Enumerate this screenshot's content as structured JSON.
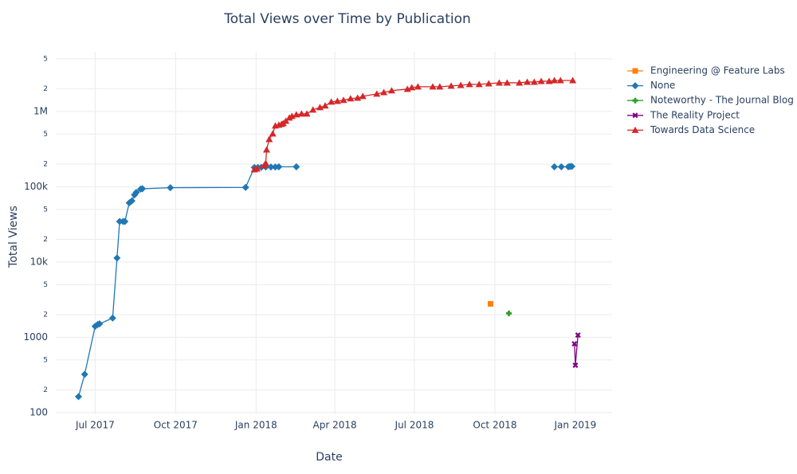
{
  "chart_data": {
    "type": "line",
    "title": "Total Views over Time by Publication",
    "x_label": "Date",
    "y_label": "Total Views",
    "y_scale": "log",
    "grid": true,
    "legend_position": "right",
    "xlim": [
      "2017-05-17",
      "2019-02-12"
    ],
    "ylim": [
      95,
      6200000
    ],
    "xticks": [
      {
        "value": "2017-07-01",
        "label": "Jul 2017"
      },
      {
        "value": "2017-10-01",
        "label": "Oct 2017"
      },
      {
        "value": "2018-01-01",
        "label": "Jan 2018"
      },
      {
        "value": "2018-04-01",
        "label": "Apr 2018"
      },
      {
        "value": "2018-07-01",
        "label": "Jul 2018"
      },
      {
        "value": "2018-10-01",
        "label": "Oct 2018"
      },
      {
        "value": "2019-01-01",
        "label": "Jan 2019"
      }
    ],
    "yticks": [
      100,
      {
        "value": 200,
        "label": "2"
      },
      {
        "value": 500,
        "label": "5"
      },
      1000,
      {
        "value": 2000,
        "label": "2"
      },
      {
        "value": 5000,
        "label": "5"
      },
      {
        "value": 10000,
        "label": "10k"
      },
      {
        "value": 20000,
        "label": "2"
      },
      {
        "value": 50000,
        "label": "5"
      },
      {
        "value": 100000,
        "label": "100k"
      },
      {
        "value": 200000,
        "label": "2"
      },
      {
        "value": 500000,
        "label": "5"
      },
      {
        "value": 1000000,
        "label": "1M"
      },
      {
        "value": 2000000,
        "label": "2"
      },
      {
        "value": 5000000,
        "label": "5"
      }
    ],
    "series": [
      {
        "name": "Engineering @ Feature Labs",
        "color": "#ff7f0e",
        "marker": "square",
        "x": [
          "2018-09-26"
        ],
        "values": [
          2780
        ]
      },
      {
        "name": "None",
        "color": "#1f77b4",
        "marker": "diamond",
        "x": [
          "2017-06-12",
          "2017-06-19",
          "2017-07-01",
          "2017-07-04",
          "2017-07-06",
          "2017-07-21",
          "2017-07-26",
          "2017-07-29",
          "2017-08-02",
          "2017-08-04",
          "2017-08-09",
          "2017-08-12",
          "2017-08-15",
          "2017-08-17",
          "2017-08-22",
          "2017-08-24",
          "2017-09-25",
          "2017-12-20",
          "2017-12-30",
          "2018-01-03",
          "2018-01-07",
          "2018-01-12",
          "2018-01-18",
          "2018-01-23",
          "2018-01-27",
          "2018-02-16",
          "2018-06-01",
          "2018-12-08",
          "2018-12-16",
          "2018-12-24",
          "2018-12-26",
          "2018-12-28"
        ],
        "values": [
          163,
          322,
          1400,
          1480,
          1510,
          1800,
          11300,
          34600,
          34600,
          34600,
          61000,
          65000,
          78000,
          84000,
          93000,
          94000,
          97000,
          98000,
          180000,
          180000,
          181000,
          183000,
          183000,
          183000,
          184000,
          184000,
          null,
          184000,
          184000,
          184000,
          186000,
          186000
        ]
      },
      {
        "name": "Noteworthy - The Journal Blog",
        "color": "#2ca02c",
        "marker": "cross",
        "x": [
          "2018-10-17"
        ],
        "values": [
          2080
        ]
      },
      {
        "name": "The Reality Project",
        "color": "#800080",
        "marker": "x",
        "x": [
          "2018-12-31",
          "2019-01-01",
          "2019-01-04"
        ],
        "values": [
          820,
          425,
          1070
        ]
      },
      {
        "name": "Towards Data Science",
        "color": "#d62728",
        "marker": "triangle-up",
        "x": [
          "2017-12-30",
          "2018-01-02",
          "2018-01-10",
          "2018-01-12",
          "2018-01-13",
          "2018-01-16",
          "2018-01-20",
          "2018-01-23",
          "2018-01-27",
          "2018-01-30",
          "2018-02-01",
          "2018-02-04",
          "2018-02-08",
          "2018-02-11",
          "2018-02-16",
          "2018-02-22",
          "2018-02-28",
          "2018-03-07",
          "2018-03-15",
          "2018-03-21",
          "2018-03-28",
          "2018-04-04",
          "2018-04-11",
          "2018-04-19",
          "2018-04-27",
          "2018-05-03",
          "2018-05-19",
          "2018-05-27",
          "2018-06-05",
          "2018-06-23",
          "2018-06-28",
          "2018-07-05",
          "2018-07-22",
          "2018-07-30",
          "2018-08-12",
          "2018-08-23",
          "2018-09-02",
          "2018-09-13",
          "2018-09-24",
          "2018-10-06",
          "2018-10-15",
          "2018-10-29",
          "2018-11-07",
          "2018-11-15",
          "2018-11-23",
          "2018-12-02",
          "2018-12-08",
          "2018-12-15",
          "2018-12-29"
        ],
        "values": [
          169000,
          173000,
          190000,
          205000,
          310000,
          426000,
          506000,
          645000,
          660000,
          677000,
          694000,
          746000,
          823000,
          864000,
          907000,
          930000,
          930000,
          1050000,
          1130000,
          1190000,
          1340000,
          1370000,
          1410000,
          1480000,
          1510000,
          1590000,
          1710000,
          1790000,
          1890000,
          1980000,
          2080000,
          2130000,
          2130000,
          2130000,
          2180000,
          2230000,
          2290000,
          2290000,
          2340000,
          2400000,
          2400000,
          2400000,
          2460000,
          2460000,
          2520000,
          2520000,
          2580000,
          2580000,
          2580000
        ]
      }
    ]
  }
}
